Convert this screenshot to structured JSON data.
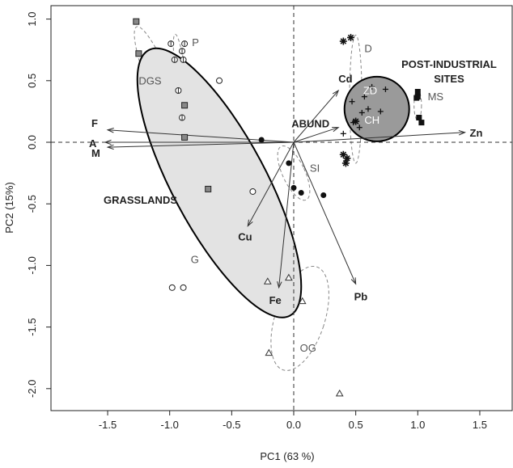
{
  "chart_data": {
    "type": "scatter",
    "subtype": "pca-biplot",
    "xlabel": "PC1 (63 %)",
    "ylabel": "PC2 (15%)",
    "xlim": [
      -1.85,
      1.85
    ],
    "ylim": [
      -2.15,
      1.1
    ],
    "xticks": [
      "-1.5",
      "-1.0",
      "-0.5",
      "0.0",
      "0.5",
      "1.0",
      "1.5"
    ],
    "yticks": [
      "1.0",
      "0.5",
      "0.0",
      "-0.5",
      "-1.0",
      "-1.5",
      "-2.0"
    ],
    "grid": false,
    "reference_lines": "dashed lines at x=0 and y=0",
    "vectors": [
      {
        "label": "F",
        "x": -1.5,
        "y": 0.1
      },
      {
        "label": "A",
        "x": -1.52,
        "y": 0.0
      },
      {
        "label": "M",
        "x": -1.5,
        "y": -0.04
      },
      {
        "label": "Zn",
        "x": 1.38,
        "y": 0.08
      },
      {
        "label": "Cd",
        "x": 0.36,
        "y": 0.42
      },
      {
        "label": "ABUND",
        "x": 0.36,
        "y": 0.12
      },
      {
        "label": "Cu",
        "x": -0.37,
        "y": -0.68
      },
      {
        "label": "Fe",
        "x": -0.12,
        "y": -1.18
      },
      {
        "label": "Pb",
        "x": 0.5,
        "y": -1.15
      }
    ],
    "groups": [
      {
        "label": "P",
        "marker": "open circle with bar",
        "points": [
          [
            -0.99,
            0.8
          ],
          [
            -0.88,
            0.8
          ],
          [
            -0.96,
            0.67
          ],
          [
            -0.89,
            0.67
          ],
          [
            -0.9,
            0.74
          ],
          [
            -0.9,
            0.2
          ],
          [
            -0.93,
            0.42
          ]
        ]
      },
      {
        "label": "DGS",
        "marker": "grey filled square",
        "points": [
          [
            -1.27,
            0.98
          ],
          [
            -1.25,
            0.72
          ],
          [
            -0.88,
            0.3
          ],
          [
            -0.88,
            0.04
          ],
          [
            -0.69,
            -0.38
          ]
        ]
      },
      {
        "label": "G",
        "marker": "open circle",
        "points": [
          [
            -0.6,
            0.5
          ],
          [
            -0.33,
            -0.4
          ],
          [
            -0.98,
            -1.18
          ],
          [
            -0.89,
            -1.18
          ]
        ]
      },
      {
        "label": "SI",
        "marker": "filled circle",
        "points": [
          [
            -0.26,
            0.02
          ],
          [
            -0.04,
            -0.17
          ],
          [
            0.0,
            -0.37
          ],
          [
            0.06,
            -0.41
          ],
          [
            0.24,
            -0.43
          ]
        ]
      },
      {
        "label": "D",
        "marker": "asterisk",
        "points": [
          [
            0.4,
            0.82
          ],
          [
            0.46,
            0.85
          ],
          [
            0.4,
            -0.1
          ],
          [
            0.43,
            -0.13
          ],
          [
            0.42,
            -0.17
          ],
          [
            0.5,
            0.17
          ]
        ]
      },
      {
        "label": "ZD",
        "marker": "plus",
        "points": [
          [
            0.47,
            0.33
          ],
          [
            0.57,
            0.37
          ],
          [
            0.63,
            0.45
          ],
          [
            0.74,
            0.43
          ],
          [
            0.6,
            0.27
          ],
          [
            0.7,
            0.25
          ],
          [
            0.55,
            0.24
          ],
          [
            0.4,
            0.07
          ]
        ]
      },
      {
        "label": "CH",
        "marker": "plus",
        "points": [
          [
            0.48,
            0.16
          ],
          [
            0.53,
            0.12
          ]
        ]
      },
      {
        "label": "MS",
        "marker": "black filled square",
        "points": [
          [
            1.0,
            0.41
          ],
          [
            0.99,
            0.36
          ],
          [
            1.01,
            0.2
          ],
          [
            1.03,
            0.16
          ],
          [
            1.0,
            0.37
          ]
        ]
      },
      {
        "label": "OG",
        "marker": "open triangle",
        "points": [
          [
            -0.21,
            -1.13
          ],
          [
            -0.04,
            -1.1
          ],
          [
            0.07,
            -1.29
          ],
          [
            -0.2,
            -1.71
          ],
          [
            0.37,
            -2.04
          ]
        ]
      }
    ],
    "regions": [
      {
        "label": "GRASSLANDS"
      },
      {
        "label": "POST-INDUSTRIAL SITES"
      }
    ]
  }
}
